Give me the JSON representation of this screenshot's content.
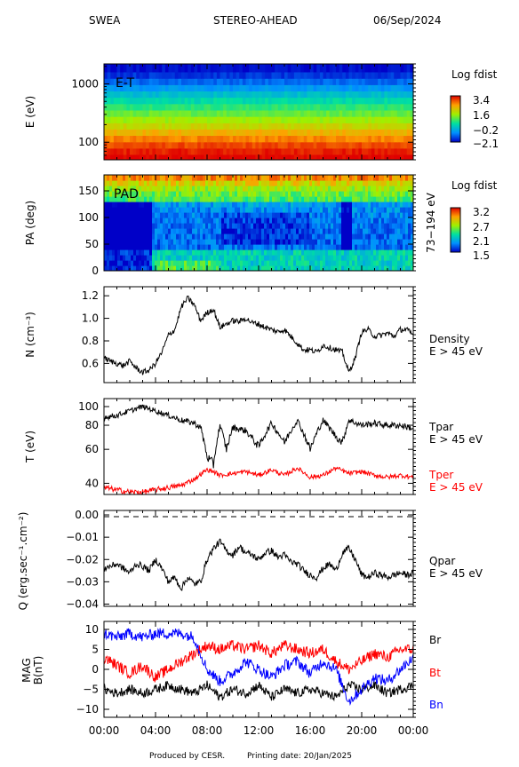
{
  "header": {
    "instrument": "SWEA",
    "spacecraft": "STEREO-AHEAD",
    "date": "06/Sep/2024"
  },
  "footer": {
    "produced_by": "Produced by CESR.",
    "printing_date": "Printing date: 20/Jan/2025"
  },
  "colors": {
    "black_trace": "#000000",
    "red_trace": "#ff0000",
    "blue_trace": "#0000ff"
  },
  "chart_data": [
    {
      "type": "heatmap",
      "panel": "energy",
      "ylabel": "E (eV)",
      "inner_label": "E-T",
      "y_scale": "log",
      "ylim": [
        50,
        2200
      ],
      "y_ticks": [
        100,
        1000
      ],
      "y_tick_labels": [
        "100",
        "1000"
      ],
      "colorbar": {
        "title": "Log fdist",
        "labels": [
          "3.4",
          "1.6",
          "−0.2",
          "−2.1"
        ],
        "range": [
          -2.1,
          3.4
        ]
      },
      "energy_bands_ev": [
        55,
        70,
        90,
        115,
        150,
        190,
        245,
        315,
        405,
        520,
        670,
        860,
        1100,
        1420,
        1830
      ],
      "band_log_fdist": [
        3.4,
        3.2,
        2.9,
        2.5,
        2.1,
        1.6,
        1.2,
        0.8,
        0.4,
        0.0,
        -0.4,
        -0.9,
        -1.3,
        -1.7,
        -2.0
      ]
    },
    {
      "type": "heatmap",
      "panel": "pitch_angle",
      "ylabel": "PA (deg)",
      "inner_label": "PAD",
      "right_label": "73−194 eV",
      "ylim": [
        0,
        180
      ],
      "y_ticks": [
        0,
        50,
        100,
        150
      ],
      "y_tick_labels": [
        "0",
        "50",
        "100",
        "150"
      ],
      "colorbar": {
        "title": "Log fdist",
        "labels": [
          "3.2",
          "2.7",
          "2.1",
          "1.5"
        ],
        "range": [
          1.5,
          3.2
        ]
      }
    },
    {
      "type": "line",
      "panel": "density",
      "ylabel": "N (cm⁻³)",
      "series": [
        {
          "name": "Density",
          "subtitle": "E > 45 eV",
          "color": "#000000",
          "hours": [
            0,
            0.5,
            1,
            1.5,
            2,
            2.5,
            3,
            3.5,
            4,
            4.5,
            5,
            5.5,
            6,
            6.5,
            7,
            7.5,
            8,
            8.5,
            9,
            9.5,
            10,
            10.5,
            11,
            11.5,
            12,
            12.5,
            13,
            13.5,
            14,
            14.5,
            15,
            15.5,
            16,
            16.5,
            17,
            17.5,
            18,
            18.5,
            19,
            19.5,
            20,
            20.5,
            21,
            21.5,
            22,
            22.5,
            23,
            23.5,
            24
          ],
          "values": [
            0.65,
            0.62,
            0.6,
            0.58,
            0.62,
            0.56,
            0.52,
            0.54,
            0.6,
            0.7,
            0.85,
            0.9,
            1.1,
            1.18,
            1.12,
            0.98,
            1.05,
            1.08,
            0.92,
            0.95,
            0.98,
            0.97,
            1.0,
            0.96,
            0.95,
            0.92,
            0.9,
            0.88,
            0.9,
            0.84,
            0.78,
            0.72,
            0.72,
            0.7,
            0.76,
            0.74,
            0.72,
            0.7,
            0.52,
            0.65,
            0.88,
            0.9,
            0.84,
            0.85,
            0.87,
            0.84,
            0.9,
            0.9,
            0.85
          ]
        }
      ],
      "ylim": [
        0.43,
        1.28
      ],
      "y_ticks": [
        0.6,
        0.8,
        1.0,
        1.2
      ],
      "y_tick_labels": [
        "0.6",
        "0.8",
        "1.0",
        "1.2"
      ]
    },
    {
      "type": "line",
      "panel": "temperature",
      "ylabel": "T (eV)",
      "y_scale": "log",
      "ylim": [
        35,
        110
      ],
      "y_ticks": [
        40,
        60,
        80,
        100
      ],
      "y_tick_labels": [
        "40",
        "60",
        "80",
        "100"
      ],
      "series": [
        {
          "name": "Tpar",
          "subtitle": "E > 45 eV",
          "color": "#000000",
          "hours": [
            0,
            1,
            2,
            3,
            4,
            5,
            6,
            7,
            7.5,
            8,
            8.5,
            9,
            9.5,
            10,
            11,
            12,
            13,
            14,
            15,
            16,
            17,
            18,
            18.5,
            19,
            20,
            21,
            22,
            23,
            24
          ],
          "values": [
            88,
            90,
            95,
            100,
            95,
            90,
            85,
            82,
            78,
            55,
            50,
            80,
            60,
            78,
            75,
            62,
            82,
            65,
            85,
            60,
            85,
            70,
            65,
            85,
            80,
            82,
            80,
            80,
            77
          ]
        },
        {
          "name": "Tper",
          "subtitle": "E > 45 eV",
          "color": "#ff0000",
          "hours": [
            0,
            1,
            2,
            3,
            4,
            5,
            6,
            7,
            8,
            8.5,
            9,
            10,
            11,
            12,
            13,
            14,
            15,
            16,
            17,
            18,
            19,
            20,
            21,
            22,
            23,
            24
          ],
          "values": [
            38,
            37,
            36,
            36,
            37,
            38,
            39,
            42,
            47,
            46,
            44,
            45,
            46,
            44,
            47,
            44,
            48,
            43,
            44,
            48,
            45,
            46,
            44,
            43,
            44,
            43
          ]
        }
      ]
    },
    {
      "type": "line",
      "panel": "heat_flux",
      "ylabel": "Q (erg.sec⁻¹.cm⁻²)",
      "ylim": [
        -0.041,
        0.002
      ],
      "y_ticks": [
        -0.04,
        -0.03,
        -0.02,
        -0.01,
        0.0
      ],
      "y_tick_labels": [
        "−0.04",
        "−0.03",
        "−0.02",
        "−0.01",
        "0.00"
      ],
      "series": [
        {
          "name": "Qpar",
          "subtitle": "E > 45 eV",
          "color": "#000000",
          "hours": [
            0,
            0.5,
            1,
            1.5,
            2,
            2.5,
            3,
            3.5,
            4,
            4.5,
            5,
            5.5,
            6,
            6.5,
            7,
            7.5,
            8,
            8.5,
            9,
            9.5,
            10,
            10.5,
            11,
            11.5,
            12,
            12.5,
            13,
            13.5,
            14,
            14.5,
            15,
            15.5,
            16,
            16.5,
            17,
            17.5,
            18,
            18.5,
            19,
            19.5,
            20,
            20.5,
            21,
            21.5,
            22,
            22.5,
            23,
            23.5,
            24
          ],
          "values": [
            -0.024,
            -0.023,
            -0.022,
            -0.024,
            -0.026,
            -0.022,
            -0.023,
            -0.025,
            -0.02,
            -0.024,
            -0.03,
            -0.028,
            -0.033,
            -0.028,
            -0.031,
            -0.03,
            -0.02,
            -0.015,
            -0.012,
            -0.016,
            -0.018,
            -0.014,
            -0.017,
            -0.018,
            -0.02,
            -0.017,
            -0.016,
            -0.019,
            -0.018,
            -0.021,
            -0.022,
            -0.025,
            -0.027,
            -0.028,
            -0.024,
            -0.022,
            -0.025,
            -0.017,
            -0.015,
            -0.02,
            -0.027,
            -0.028,
            -0.026,
            -0.027,
            -0.028,
            -0.027,
            -0.026,
            -0.027,
            -0.026
          ]
        }
      ]
    },
    {
      "type": "line",
      "panel": "magnetic_field",
      "ylabel": "MAG",
      "ylabel2": "B(nT)",
      "ylim": [
        -12,
        12
      ],
      "y_ticks": [
        -10,
        -5,
        0,
        5,
        10
      ],
      "y_tick_labels": [
        "−10",
        "−5",
        "0",
        "5",
        "10"
      ],
      "x_tick_labels": [
        "00:00",
        "04:00",
        "08:00",
        "12:00",
        "16:00",
        "20:00",
        "00:00"
      ],
      "series": [
        {
          "name": "Br",
          "color": "#000000",
          "hours": [
            0,
            1,
            2,
            3,
            4,
            5,
            6,
            7,
            8,
            9,
            10,
            11,
            12,
            13,
            14,
            15,
            16,
            17,
            18,
            19,
            20,
            21,
            22,
            23,
            24
          ],
          "values": [
            -5,
            -6,
            -5,
            -6,
            -5,
            -4,
            -5,
            -6,
            -4,
            -7,
            -5,
            -6,
            -4,
            -7,
            -5,
            -6,
            -5,
            -6,
            -7,
            -4,
            -5,
            -4,
            -6,
            -5,
            -4
          ]
        },
        {
          "name": "Bt",
          "color": "#ff0000",
          "hours": [
            0,
            1,
            2,
            3,
            4,
            5,
            6,
            7,
            8,
            9,
            10,
            11,
            12,
            13,
            14,
            15,
            16,
            17,
            18,
            19,
            20,
            21,
            22,
            23,
            24
          ],
          "values": [
            3,
            1,
            -1,
            1,
            -2,
            0,
            2,
            4,
            6,
            5,
            6,
            5,
            6,
            4,
            6,
            5,
            4,
            5,
            2,
            0,
            2,
            4,
            3,
            5,
            5
          ]
        },
        {
          "name": "Bn",
          "color": "#0000ff",
          "hours": [
            0,
            1,
            2,
            3,
            4,
            5,
            6,
            7,
            8,
            9,
            10,
            11,
            12,
            13,
            14,
            15,
            16,
            17,
            18,
            19,
            20,
            21,
            22,
            23,
            24
          ],
          "values": [
            9,
            8,
            9,
            8,
            9,
            9,
            9,
            8,
            0,
            -3,
            -1,
            2,
            0,
            -2,
            1,
            2,
            -1,
            2,
            0,
            -8,
            -5,
            -2,
            -3,
            0,
            3
          ]
        }
      ]
    }
  ]
}
